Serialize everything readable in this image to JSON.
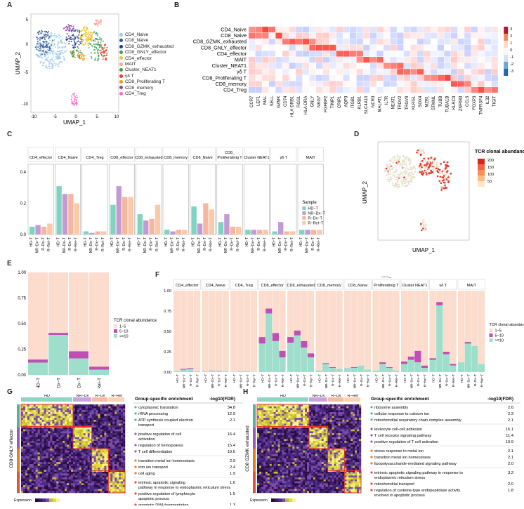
{
  "panels": {
    "a": "A",
    "b": "B",
    "c": "C",
    "d": "D",
    "e": "E",
    "f": "F",
    "g": "G",
    "h": "H"
  },
  "umap": {
    "xlabel": "UMAP_1",
    "ylabel": "UMAP_2",
    "xticks": [
      "-10",
      "-5",
      "0",
      "5",
      "10"
    ],
    "yticks": [
      "5",
      "0",
      "-5",
      "-10"
    ],
    "legend": [
      {
        "label": "CD4_Naive",
        "color": "#9ec9e8"
      },
      {
        "label": "CD8_Naive",
        "color": "#2f5597"
      },
      {
        "label": "CD8_GZMK_exhausted",
        "color": "#1e3a8a"
      },
      {
        "label": "CD8_GNLY_effector",
        "color": "#3aa35a"
      },
      {
        "label": "CD4_effector",
        "color": "#f4c430"
      },
      {
        "label": "MAIT",
        "color": "#f4a6a0"
      },
      {
        "label": "Cluster_NEAT1",
        "color": "#5a8f3a"
      },
      {
        "label": "γδ T",
        "color": "#ee3b2c"
      },
      {
        "label": "CD8_Proliferating T",
        "color": "#f39c12"
      },
      {
        "label": "CD8_memory",
        "color": "#8e44ad"
      },
      {
        "label": "CD4_Treg",
        "color": "#ff66cc"
      }
    ]
  },
  "heatmap_b": {
    "rows": [
      "CD4_Naive",
      "CD8_Naive",
      "CD8_GZMK_exhausted",
      "CD8_GNLY_effector",
      "CD4_effector",
      "MAIT",
      "Cluster_NEAT1",
      "γδ T",
      "CD8_Proliferating T",
      "CD8_memory",
      "CD4_Treg"
    ],
    "genes": [
      "CCR7",
      "LEF1",
      "MAL",
      "SELL",
      "GZMK",
      "CD74",
      "HLA-DRB1",
      "RGS1",
      "HLA-DRA",
      "GNLY",
      "NKG7",
      "FGFBP2",
      "TIMP1",
      "CRIP1",
      "AQP3",
      "ITGB1",
      "KLRB1",
      "SLC4A10",
      "NCR3",
      "MALAT1",
      "IL7R",
      "NEAT1",
      "TRDV2",
      "TRGV9",
      "KLRG1",
      "SOX4",
      "MZB1",
      "STMN1",
      "TUBB",
      "TUBA1B",
      "KLRC3",
      "ZNF683",
      "CCL5",
      "FOXP3",
      "TNFRSF4",
      "IL32",
      "TIGIT"
    ],
    "scale": [
      "3",
      "2",
      "1",
      "0",
      "-1",
      "-2",
      "-3"
    ]
  },
  "bar_c": {
    "groups": [
      "CD4_effector",
      "CD4_Naive",
      "CD4_Treg",
      "CD8_effector",
      "CD8_exhausted",
      "CD8_memory",
      "CD8_Naive",
      "CD8_ Proliferatinig T",
      "Cluster NEAT1",
      "γδ T",
      "MAIT"
    ],
    "samples": [
      "HD−T",
      "NR−Dx−T",
      "R−Dx−T",
      "R−Rel−T"
    ],
    "colors": [
      "#7fd3c0",
      "#c39bd3",
      "#f5b7a0",
      "#f9c9a8"
    ],
    "yticks": [
      "0.4",
      "0.2",
      "0.0"
    ],
    "legend_title": "Sample",
    "values": [
      [
        0.05,
        0.06,
        0.05,
        0.07
      ],
      [
        0.31,
        0.26,
        0.26,
        0.2
      ],
      [
        0.02,
        0.01,
        0.02,
        0.02
      ],
      [
        0.19,
        0.31,
        0.24,
        0.24
      ],
      [
        0.13,
        0.09,
        0.1,
        0.19
      ],
      [
        0.03,
        0.02,
        0.03,
        0.03
      ],
      [
        0.18,
        0.07,
        0.2,
        0.16
      ],
      [
        0.08,
        0.13,
        0.05,
        0.05
      ],
      [
        0.03,
        0.03,
        0.03,
        0.03
      ],
      [
        0.02,
        0.08,
        0.02,
        0.02
      ],
      [
        0.03,
        0.03,
        0.03,
        0.03
      ]
    ]
  },
  "tcr_d": {
    "title": "TCR clonal abundance",
    "xlabel": "UMAP_1",
    "ylabel": "UMAP_2",
    "scale": [
      "200",
      "150",
      "100",
      "50"
    ]
  },
  "stack_e": {
    "categories": [
      "HD−T",
      "NR−Dx−T",
      "R−Dx−T",
      "R−Rel−T"
    ],
    "yticks": [
      "1.00",
      "0.75",
      "0.50",
      "0.25",
      "0.00"
    ],
    "legend_title": "TCR clonal abundance",
    "legend": [
      "1~5",
      "5~10",
      ">=10"
    ],
    "colors": [
      "#fbdccd",
      "#c04fb3",
      "#9edecb"
    ],
    "ge10": [
      0.12,
      0.39,
      0.16,
      0.05
    ],
    "mid": [
      0.03,
      0.02,
      0.07,
      0.03
    ]
  },
  "stack_f": {
    "groups": [
      "CD4_effector",
      "CD4_Naive",
      "CD4_Treg",
      "CD8_effector",
      "CD8_exhausted",
      "CD8_memory",
      "CD8_Naive",
      "CD8_ Proliferatinig T",
      "Cluster NEAT1",
      "γδ T",
      "MAIT"
    ],
    "samples": [
      "HD−T",
      "NR−Dx−T",
      "R−Dx−T",
      "R−Rel−T"
    ],
    "yticks": [
      "1.00",
      "0.75",
      "0.50",
      "0.25",
      "0.00"
    ],
    "legend_title": "TCR clonal abundance",
    "legend": [
      "1~5",
      "5~10",
      ">=10"
    ],
    "ge10": [
      [
        0.01,
        0.03,
        0.04,
        0.01
      ],
      [
        0.01,
        0.02,
        0.02,
        0.01
      ],
      [
        0.0,
        0.01,
        0.01,
        0.0
      ],
      [
        0.35,
        0.72,
        0.38,
        0.18
      ],
      [
        0.36,
        0.45,
        0.3,
        0.18
      ],
      [
        0.02,
        0.1,
        0.05,
        0.04
      ],
      [
        0.05,
        0.05,
        0.08,
        0.03
      ],
      [
        0.02,
        0.1,
        0.05,
        0.02
      ],
      [
        0.1,
        0.15,
        0.12,
        0.05
      ],
      [
        0.15,
        0.82,
        0.22,
        0.08
      ],
      [
        0.12,
        0.35,
        0.32,
        0.1
      ]
    ],
    "mid": [
      [
        0.0,
        0.01,
        0.01,
        0.0
      ],
      [
        0.0,
        0.0,
        0.0,
        0.0
      ],
      [
        0.0,
        0.0,
        0.0,
        0.0
      ],
      [
        0.08,
        0.06,
        0.1,
        0.08
      ],
      [
        0.07,
        0.06,
        0.08,
        0.05
      ],
      [
        0.0,
        0.01,
        0.01,
        0.0
      ],
      [
        0.0,
        0.01,
        0.0,
        0.0
      ],
      [
        0.0,
        0.02,
        0.01,
        0.0
      ],
      [
        0.03,
        0.04,
        0.14,
        0.03
      ],
      [
        0.02,
        0.04,
        0.03,
        0.02
      ],
      [
        0.0,
        0.02,
        0.0,
        0.0
      ]
    ]
  },
  "panel_g": {
    "side_label": "CD8 GNLY effector",
    "cols": [
      "HD",
      "NR−Dx",
      "R−Dx",
      "R−Rel"
    ],
    "table_header": "Group-specific enrichment",
    "fdr_header": "-log10(FDR)",
    "expr_label": "Expression",
    "rows": [
      {
        "term": "cytoplasmic translation",
        "v": "34.8",
        "color": "#4fb3a0"
      },
      {
        "term": "rRNA processing",
        "v": "12.9",
        "color": "#4fb3a0"
      },
      {
        "term": "ATP synthesis coupled electron transport",
        "v": "2.1",
        "color": "#4fb3a0"
      },
      {
        "term": "positive regulation of cell activation",
        "v": "16.4",
        "color": "#9b59b6"
      },
      {
        "term": "regulation of hemopoiesis",
        "v": "15.4",
        "color": "#9b59b6"
      },
      {
        "term": "T cell differentiation",
        "v": "10.6",
        "color": "#9b59b6"
      },
      {
        "term": "transition metal ion homeostasis",
        "v": "2.9",
        "color": "#e67e22"
      },
      {
        "term": "iron ion transport",
        "v": "2.4",
        "color": "#e67e22"
      },
      {
        "term": "cell aging",
        "v": "1.9",
        "color": "#e67e22"
      },
      {
        "term": "intrinsic apoptotic signaling pathway in response to endoplasmic reticulum stress",
        "v": "1.6",
        "color": "#e74c3c"
      },
      {
        "term": "positive regulation of lymphocyte apoptotic process",
        "v": "1.5",
        "color": "#e74c3c"
      },
      {
        "term": "apoptotic DNA fragmentation",
        "v": "1.3",
        "color": "#e74c3c"
      }
    ]
  },
  "panel_h": {
    "side_label": "CD8 GZMK exhausted",
    "cols": [
      "HD",
      "NR−Dx",
      "R−Dx",
      "R−Rel"
    ],
    "table_header": "Group-specific enrichment",
    "fdr_header": "-log10(FDR)",
    "expr_label": "Expression",
    "rows": [
      {
        "term": "ribosome assembly",
        "v": "2.6",
        "color": "#4fb3a0"
      },
      {
        "term": "cellular response to calcium ion",
        "v": "2.3",
        "color": "#4fb3a0"
      },
      {
        "term": "mitochondrial respiratory chain complex assembly",
        "v": "2.1",
        "color": "#4fb3a0"
      },
      {
        "term": "leukocyte cell-cell adhesion",
        "v": "16.1",
        "color": "#9b59b6"
      },
      {
        "term": "T cell receptor signaling pathway",
        "v": "11.4",
        "color": "#9b59b6"
      },
      {
        "term": "positive regulation of T cell activation",
        "v": "10.9",
        "color": "#9b59b6"
      },
      {
        "term": "stress response to metal ion",
        "v": "2.1",
        "color": "#e67e22"
      },
      {
        "term": "transition metal ion homeostasis",
        "v": "2.1",
        "color": "#e67e22"
      },
      {
        "term": "lipopolysaccharide-mediated signaling pathway",
        "v": "2.0",
        "color": "#e67e22"
      },
      {
        "term": "intrinsic apoptotic signaling pathway in response to endoplasmic reticulum stress",
        "v": "3.2",
        "color": "#e74c3c"
      },
      {
        "term": "mitochondrial transport",
        "v": "2.0",
        "color": "#e74c3c"
      },
      {
        "term": "regulation of cysteine-type endopeptidase activity involved in apoptotic process",
        "v": "1.8",
        "color": "#e74c3c"
      }
    ]
  }
}
